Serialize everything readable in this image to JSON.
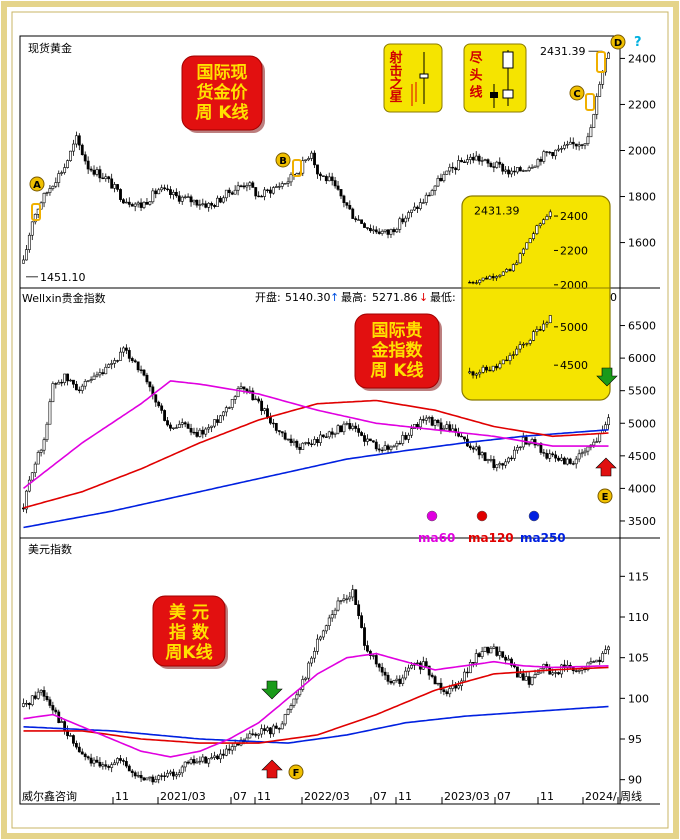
{
  "colors": {
    "frame": "#f2e6a6",
    "badge_bg": "#e21010",
    "badge_text": "#ffe000",
    "note_bg": "#f5e400",
    "note_text": "#d00000",
    "ma60": "#e000e0",
    "ma120": "#e00000",
    "ma250": "#0020e0",
    "arrow_green": "#1a9a1a",
    "arrow_red": "#e01010",
    "label_marker": "#f0c000"
  },
  "panels": [
    {
      "key": "gold",
      "title": "现货黄金"
    },
    {
      "key": "index",
      "title": "Wellxin贵金指数"
    },
    {
      "key": "dxy",
      "title": "美元指数"
    }
  ],
  "info_bar": {
    "open_label": "开盘:",
    "open_value": "5140.30",
    "high_label": "最高:",
    "high_value": "5271.86",
    "low_label": "最低:",
    "tail_value": "0"
  },
  "badges": [
    {
      "key": "gold",
      "line1": "国际现",
      "line2": "货金价",
      "line3": "周 K线"
    },
    {
      "key": "index",
      "line1": "国际贵",
      "line2": "金指数",
      "line3": "周 K线"
    },
    {
      "key": "dxy",
      "line1": "美  元",
      "line2": "指  数",
      "line3": "周K线"
    }
  ],
  "notes": [
    {
      "key": "shooting-star",
      "text": "射击之星"
    },
    {
      "key": "end-line",
      "text": "尽头线"
    }
  ],
  "markers": [
    "A",
    "B",
    "C",
    "D",
    "E",
    "F"
  ],
  "question_mark": "?",
  "legend": [
    {
      "name": "ma60",
      "label": "ma60"
    },
    {
      "name": "ma120",
      "label": "ma120"
    },
    {
      "name": "ma250",
      "label": "ma250"
    }
  ],
  "x_axis": {
    "labels": [
      "11",
      "2021/03",
      "07",
      "11",
      "2022/03",
      "07",
      "11",
      "2023/03",
      "07",
      "11",
      "2024/",
      "周线"
    ],
    "source": "威尔鑫咨询"
  },
  "chart_data": [
    {
      "type": "candlestick",
      "name": "gold",
      "y_ticks": [
        1600,
        1800,
        2000,
        2200,
        2400
      ],
      "ylim": [
        1420,
        2480
      ],
      "annotations": {
        "high": "2431.39",
        "low": "1451.10"
      },
      "anchors": [
        [
          0,
          1510
        ],
        [
          3,
          1700
        ],
        [
          6,
          1780
        ],
        [
          10,
          1860
        ],
        [
          14,
          1930
        ],
        [
          18,
          2050
        ],
        [
          22,
          1930
        ],
        [
          28,
          1880
        ],
        [
          34,
          1790
        ],
        [
          40,
          1760
        ],
        [
          46,
          1830
        ],
        [
          52,
          1800
        ],
        [
          58,
          1780
        ],
        [
          64,
          1760
        ],
        [
          70,
          1820
        ],
        [
          76,
          1860
        ],
        [
          80,
          1800
        ],
        [
          84,
          1830
        ],
        [
          90,
          1870
        ],
        [
          94,
          1920
        ],
        [
          98,
          2000
        ],
        [
          100,
          1900
        ],
        [
          104,
          1870
        ],
        [
          108,
          1800
        ],
        [
          112,
          1720
        ],
        [
          118,
          1660
        ],
        [
          124,
          1640
        ],
        [
          130,
          1710
        ],
        [
          136,
          1780
        ],
        [
          142,
          1880
        ],
        [
          146,
          1920
        ],
        [
          150,
          1960
        ],
        [
          154,
          1970
        ],
        [
          158,
          1940
        ],
        [
          162,
          1930
        ],
        [
          166,
          1900
        ],
        [
          170,
          1920
        ],
        [
          174,
          1950
        ],
        [
          178,
          1990
        ],
        [
          182,
          2000
        ],
        [
          186,
          2020
        ],
        [
          190,
          2040
        ],
        [
          192,
          2050
        ],
        [
          194,
          2150
        ],
        [
          196,
          2300
        ],
        [
          198,
          2400
        ],
        [
          199,
          2431
        ]
      ]
    },
    {
      "type": "candlestick",
      "name": "index",
      "y_ticks": [
        3500,
        4000,
        4500,
        5000,
        5500,
        6000,
        6500
      ],
      "ylim": [
        3300,
        6800
      ],
      "info": {
        "open": 5140.3,
        "high": 5271.86
      },
      "anchors": [
        [
          0,
          3700
        ],
        [
          3,
          4300
        ],
        [
          6,
          4600
        ],
        [
          8,
          5000
        ],
        [
          10,
          5600
        ],
        [
          14,
          5700
        ],
        [
          18,
          5550
        ],
        [
          22,
          5600
        ],
        [
          28,
          5800
        ],
        [
          34,
          6100
        ],
        [
          38,
          5950
        ],
        [
          42,
          5600
        ],
        [
          46,
          5250
        ],
        [
          50,
          4900
        ],
        [
          54,
          5000
        ],
        [
          58,
          4800
        ],
        [
          64,
          4950
        ],
        [
          70,
          5300
        ],
        [
          74,
          5600
        ],
        [
          78,
          5400
        ],
        [
          82,
          5200
        ],
        [
          86,
          4900
        ],
        [
          90,
          4700
        ],
        [
          94,
          4650
        ],
        [
          98,
          4700
        ],
        [
          102,
          4800
        ],
        [
          106,
          4900
        ],
        [
          110,
          4950
        ],
        [
          114,
          4850
        ],
        [
          118,
          4700
        ],
        [
          124,
          4600
        ],
        [
          130,
          4800
        ],
        [
          134,
          5000
        ],
        [
          138,
          5050
        ],
        [
          142,
          4950
        ],
        [
          146,
          4900
        ],
        [
          150,
          4700
        ],
        [
          154,
          4600
        ],
        [
          158,
          4400
        ],
        [
          162,
          4350
        ],
        [
          166,
          4500
        ],
        [
          170,
          4750
        ],
        [
          174,
          4700
        ],
        [
          178,
          4500
        ],
        [
          182,
          4450
        ],
        [
          186,
          4400
        ],
        [
          190,
          4500
        ],
        [
          194,
          4700
        ],
        [
          197,
          4900
        ],
        [
          199,
          5140
        ]
      ],
      "ma": {
        "ma60": [
          [
            0,
            4000
          ],
          [
            20,
            4700
          ],
          [
            40,
            5300
          ],
          [
            50,
            5650
          ],
          [
            60,
            5600
          ],
          [
            80,
            5450
          ],
          [
            100,
            5200
          ],
          [
            120,
            5000
          ],
          [
            140,
            4900
          ],
          [
            160,
            4800
          ],
          [
            180,
            4650
          ],
          [
            199,
            4650
          ]
        ],
        "ma120": [
          [
            0,
            3700
          ],
          [
            20,
            3950
          ],
          [
            40,
            4300
          ],
          [
            60,
            4700
          ],
          [
            80,
            5050
          ],
          [
            100,
            5300
          ],
          [
            120,
            5350
          ],
          [
            140,
            5200
          ],
          [
            160,
            4950
          ],
          [
            180,
            4800
          ],
          [
            199,
            4850
          ]
        ],
        "ma250": [
          [
            0,
            3400
          ],
          [
            30,
            3650
          ],
          [
            60,
            3950
          ],
          [
            90,
            4250
          ],
          [
            110,
            4450
          ],
          [
            130,
            4580
          ],
          [
            150,
            4700
          ],
          [
            170,
            4800
          ],
          [
            199,
            4900
          ]
        ]
      }
    },
    {
      "type": "candlestick",
      "name": "dxy",
      "y_ticks": [
        90,
        95,
        100,
        105,
        110,
        115
      ],
      "ylim": [
        87.5,
        117.5
      ],
      "anchors": [
        [
          0,
          99
        ],
        [
          6,
          101
        ],
        [
          10,
          99
        ],
        [
          14,
          96
        ],
        [
          20,
          93
        ],
        [
          26,
          91.5
        ],
        [
          32,
          92.5
        ],
        [
          38,
          90.5
        ],
        [
          44,
          90
        ],
        [
          50,
          90.5
        ],
        [
          56,
          92
        ],
        [
          62,
          92.5
        ],
        [
          68,
          93
        ],
        [
          72,
          94
        ],
        [
          76,
          95
        ],
        [
          80,
          96
        ],
        [
          84,
          96
        ],
        [
          88,
          97
        ],
        [
          92,
          100
        ],
        [
          96,
          103
        ],
        [
          100,
          107
        ],
        [
          104,
          110
        ],
        [
          108,
          112
        ],
        [
          112,
          113
        ],
        [
          116,
          107
        ],
        [
          120,
          104
        ],
        [
          124,
          102
        ],
        [
          128,
          102
        ],
        [
          132,
          104
        ],
        [
          136,
          104
        ],
        [
          140,
          102
        ],
        [
          144,
          101
        ],
        [
          148,
          102
        ],
        [
          152,
          104
        ],
        [
          156,
          106
        ],
        [
          160,
          106
        ],
        [
          164,
          105
        ],
        [
          168,
          103
        ],
        [
          172,
          102
        ],
        [
          176,
          104
        ],
        [
          180,
          103
        ],
        [
          184,
          104
        ],
        [
          188,
          103
        ],
        [
          192,
          104
        ],
        [
          196,
          105
        ],
        [
          199,
          106
        ]
      ],
      "ma": {
        "ma60": [
          [
            0,
            97.5
          ],
          [
            10,
            98
          ],
          [
            20,
            96.5
          ],
          [
            30,
            95
          ],
          [
            40,
            93.5
          ],
          [
            50,
            92.8
          ],
          [
            60,
            93.5
          ],
          [
            70,
            95
          ],
          [
            80,
            97
          ],
          [
            90,
            100
          ],
          [
            100,
            103
          ],
          [
            110,
            105
          ],
          [
            120,
            105.5
          ],
          [
            130,
            104.5
          ],
          [
            140,
            103.5
          ],
          [
            150,
            104
          ],
          [
            160,
            104.5
          ],
          [
            170,
            104
          ],
          [
            180,
            103.8
          ],
          [
            199,
            104
          ]
        ],
        "ma120": [
          [
            0,
            96
          ],
          [
            20,
            96
          ],
          [
            40,
            95
          ],
          [
            60,
            94.5
          ],
          [
            80,
            94.5
          ],
          [
            100,
            95.5
          ],
          [
            120,
            98
          ],
          [
            140,
            101
          ],
          [
            160,
            103
          ],
          [
            180,
            103.5
          ],
          [
            199,
            103.8
          ]
        ],
        "ma250": [
          [
            0,
            96.5
          ],
          [
            30,
            96
          ],
          [
            60,
            95
          ],
          [
            90,
            94.5
          ],
          [
            110,
            95.5
          ],
          [
            130,
            97
          ],
          [
            150,
            97.8
          ],
          [
            170,
            98.3
          ],
          [
            199,
            99
          ]
        ]
      }
    },
    {
      "type": "candlestick",
      "name": "gold-inset",
      "y_ticks": [
        2000,
        2200,
        2400
      ],
      "ylim": [
        1970,
        2470
      ],
      "annotations": {
        "high": "2431.39"
      },
      "anchors": [
        [
          0,
          2015
        ],
        [
          4,
          2035
        ],
        [
          8,
          2060
        ],
        [
          12,
          2080
        ],
        [
          15,
          2170
        ],
        [
          17,
          2240
        ],
        [
          20,
          2330
        ],
        [
          22,
          2380
        ],
        [
          24,
          2431
        ]
      ]
    },
    {
      "type": "candlestick",
      "name": "index-inset",
      "y_ticks": [
        4500,
        5000
      ],
      "ylim": [
        4150,
        5350
      ],
      "anchors": [
        [
          0,
          4400
        ],
        [
          4,
          4430
        ],
        [
          8,
          4470
        ],
        [
          12,
          4600
        ],
        [
          14,
          4700
        ],
        [
          16,
          4760
        ],
        [
          18,
          4850
        ],
        [
          20,
          4950
        ],
        [
          22,
          5050
        ],
        [
          24,
          5140
        ]
      ]
    }
  ]
}
